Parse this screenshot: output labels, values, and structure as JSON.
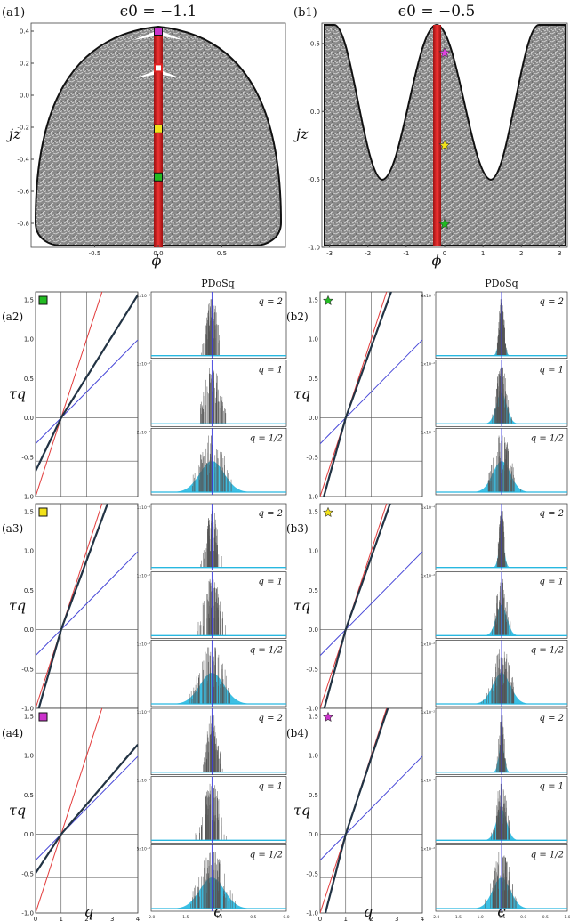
{
  "panels": {
    "a1": {
      "tag": "(a1)",
      "title": "ϵ0 = −1.1"
    },
    "b1": {
      "tag": "(b1)",
      "title": "ϵ0 = −0.5"
    },
    "rows_a": [
      "(a2)",
      "(a3)",
      "(a4)"
    ],
    "rows_b": [
      "(b2)",
      "(b3)",
      "(b4)"
    ]
  },
  "axes": {
    "phase_x": "ϕ",
    "phase_y": "jz",
    "tau_x": "q",
    "tau_y": "τq",
    "pdos_x": "ϵ",
    "pdos_header": "PDoSq"
  },
  "chart_data": [
    {
      "type": "scatter",
      "panel": "a1",
      "title": "ϵ0 = −1.1",
      "xlabel": "ϕ",
      "ylabel": "jz",
      "xlim": [
        -1.0,
        1.0
      ],
      "ylim": [
        -0.95,
        0.45
      ],
      "x_ticks": [
        "-0.5",
        "0.0",
        "0.5"
      ],
      "y_ticks": [
        "0.4",
        "0.2",
        "0.0",
        "-0.2",
        "-0.4",
        "-0.6",
        "-0.8"
      ],
      "markers": [
        {
          "shape": "square",
          "color": "#cc33cc",
          "x": 0.0,
          "y": 0.4
        },
        {
          "shape": "open-square",
          "color": "#dd2222",
          "x": 0.0,
          "y": 0.17
        },
        {
          "shape": "square",
          "color": "#f2e21a",
          "x": 0.0,
          "y": -0.21
        },
        {
          "shape": "square",
          "color": "#22bb22",
          "x": 0.0,
          "y": -0.51
        }
      ]
    },
    {
      "type": "scatter",
      "panel": "b1",
      "title": "ϵ0 = −0.5",
      "xlabel": "ϕ",
      "ylabel": "jz",
      "xlim": [
        -3.2,
        3.2
      ],
      "ylim": [
        -1.0,
        0.65
      ],
      "x_ticks": [
        "-3",
        "-2",
        "-1",
        "0",
        "1",
        "2",
        "3"
      ],
      "y_ticks": [
        "0.5",
        "0.0",
        "-0.5",
        "-1.0"
      ],
      "markers": [
        {
          "shape": "star",
          "color": "#dd44dd",
          "x": 0.0,
          "y": 0.43
        },
        {
          "shape": "star",
          "color": "#f2e21a",
          "x": 0.0,
          "y": -0.25
        },
        {
          "shape": "star",
          "color": "#22bb22",
          "x": 0.0,
          "y": -0.83
        }
      ]
    },
    {
      "type": "line",
      "panel": "tau-grid",
      "xlabel": "q",
      "ylabel": "τq",
      "xlim": [
        0,
        4
      ],
      "ylim": [
        -1.0,
        1.6
      ],
      "x_ticks": [
        "0",
        "1",
        "2",
        "3",
        "4"
      ],
      "y_ticks": [
        "1.5",
        "1.0",
        "0.5",
        "0.0",
        "-0.5",
        "-1.0"
      ],
      "rows": [
        {
          "tag": "(a2)",
          "marker": "square",
          "color": "#22bb22",
          "slope_dark": 0.52
        },
        {
          "tag": "(a3)",
          "marker": "square",
          "color": "#f2e21a",
          "slope_dark": 0.88
        },
        {
          "tag": "(a4)",
          "marker": "square",
          "color": "#cc33cc",
          "slope_dark": 0.38
        },
        {
          "tag": "(b2)",
          "marker": "star",
          "color": "#22bb22",
          "slope_dark": 0.9
        },
        {
          "tag": "(b3)",
          "marker": "star",
          "color": "#f2e21a",
          "slope_dark": 0.92
        },
        {
          "tag": "(b4)",
          "marker": "star",
          "color": "#cc33cc",
          "slope_dark": 0.97
        }
      ],
      "series": [
        {
          "name": "",
          "color": "#e23b3b",
          "slope": 1.0
        },
        {
          "name": "",
          "color": "#4a4ad8",
          "slope": 0.33
        }
      ]
    },
    {
      "type": "bar",
      "panel": "pdos-grid",
      "xlabel": "ϵ",
      "xlim": [
        -2.0,
        0.0
      ],
      "x_ticks_a": [
        "-2.0",
        "-1.5",
        "-1.0",
        "-0.5",
        "0.0"
      ],
      "x_ticks_b": [
        "-2.0",
        "-1.5",
        "-1.0",
        "-0.5",
        "0.0",
        "0.5",
        "1.0"
      ],
      "q_labels": [
        "q = 2",
        "q = 1",
        "q = 1/2"
      ],
      "center_a": -1.1,
      "center_b": -0.5,
      "y_top_labels": {
        "a2": [
          "1x10⁻²",
          "1x10⁻²",
          "2x10⁻²"
        ],
        "a3": [
          "1x10⁻⁴",
          "1x10⁻²",
          "1x10⁻²"
        ],
        "a4": [
          "1x10⁻²",
          "1x10⁻²",
          "5x10⁻²"
        ],
        "b2": [
          "6x10⁻⁴",
          "1x10⁻²",
          "1x10⁻²"
        ],
        "b3": [
          "1x10⁻⁴",
          "1x10⁻²",
          "1x10⁻²"
        ],
        "b4": [
          "1x10⁻²",
          "1x10⁻²",
          "1x10⁻²"
        ]
      }
    }
  ]
}
